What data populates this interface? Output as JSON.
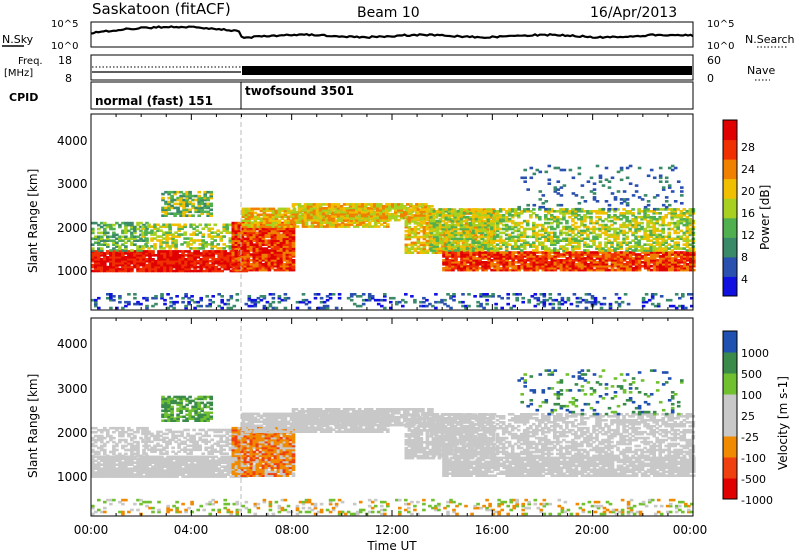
{
  "header": {
    "station": "Saskatoon (fitACF)",
    "beam": "Beam 10",
    "date": "16/Apr/2013"
  },
  "noise_panel": {
    "left_label": "N.Sky",
    "right_label": "N.Search",
    "y_ticks_left": [
      "10^5",
      "10^0"
    ],
    "y_ticks_right": [
      "10^5",
      "10^0"
    ]
  },
  "freq_panel": {
    "left_label_1": "Freq.",
    "left_label_2": "[MHz]",
    "right_label": "Nave",
    "y_ticks_left": [
      "18",
      "8"
    ],
    "y_ticks_right": [
      "60",
      "0"
    ]
  },
  "cpid_panel": {
    "label": "CPID",
    "modes": [
      {
        "name": "normal (fast) 151",
        "start_hour": 0,
        "end_hour": 6
      },
      {
        "name": "twofsound 3501",
        "start_hour": 6,
        "end_hour": 24
      }
    ]
  },
  "x_axis": {
    "label": "Time UT",
    "ticks": [
      "00:00",
      "04:00",
      "08:00",
      "12:00",
      "16:00",
      "20:00",
      "00:00"
    ]
  },
  "colors": {
    "power": [
      "#1010e0",
      "#2a50b0",
      "#3a8a6a",
      "#50b050",
      "#a8d020",
      "#f0c000",
      "#f08000",
      "#f03000",
      "#e00000"
    ],
    "velocity": [
      "#e00000",
      "#f04010",
      "#f08a00",
      "#c8c8c8",
      "#c8c8c8",
      "#70c030",
      "#3a8a4a",
      "#2050b0"
    ]
  },
  "chart_data": [
    {
      "type": "heatmap",
      "ylabel": "Slant Range [km]",
      "xlabel": "",
      "xlim": [
        0,
        24
      ],
      "ylim": [
        0,
        4500
      ],
      "y_ticks": [
        "1000",
        "2000",
        "3000",
        "4000"
      ],
      "colorbar_label": "Power [dB]",
      "colorbar_ticks": [
        "4",
        "8",
        "12",
        "16",
        "20",
        "24",
        "28"
      ],
      "colorbar_range": [
        0,
        32
      ]
    },
    {
      "type": "heatmap",
      "ylabel": "Slant Range [km]",
      "xlabel": "Time UT",
      "xlim": [
        0,
        24
      ],
      "ylim": [
        0,
        4500
      ],
      "y_ticks": [
        "1000",
        "2000",
        "3000",
        "4000"
      ],
      "colorbar_label": "Velocity [m s-1]",
      "colorbar_ticks": [
        "1000",
        "500",
        "100",
        "25",
        "-25",
        "-100",
        "-500",
        "-1000"
      ]
    }
  ]
}
